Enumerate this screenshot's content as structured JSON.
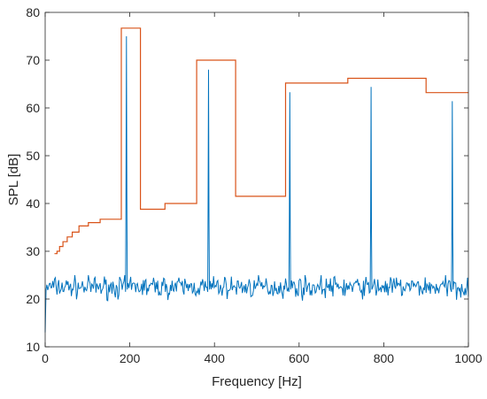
{
  "chart_data": {
    "type": "line",
    "title": "",
    "xlabel": "Frequency [Hz]",
    "ylabel": "SPL [dB]",
    "xlim": [
      0,
      1000
    ],
    "ylim": [
      10,
      80
    ],
    "grid": false,
    "legend": "none",
    "x_ticks": [
      0,
      200,
      400,
      600,
      800,
      1000
    ],
    "x_tick_labels": [
      "0",
      "200",
      "400",
      "600",
      "800",
      "1000"
    ],
    "y_ticks": [
      10,
      20,
      30,
      40,
      50,
      60,
      70,
      80
    ],
    "y_tick_labels": [
      "10",
      "20",
      "30",
      "40",
      "50",
      "60",
      "70",
      "80"
    ],
    "series": [
      {
        "color": "#0072BD",
        "style": "noisy spectrum",
        "baseline_db": 22.5,
        "noise_range_db": [
          18.0,
          25.0
        ],
        "start": [
          [
            0,
            13
          ],
          [
            2,
            22
          ],
          [
            4,
            23
          ]
        ],
        "peaks": [
          {
            "x": 192,
            "y": 75
          },
          {
            "x": 386,
            "y": 68
          },
          {
            "x": 578,
            "y": 63.3
          },
          {
            "x": 770,
            "y": 64.4
          },
          {
            "x": 962,
            "y": 61.4
          }
        ]
      },
      {
        "color": "#D95319",
        "style": "stepped threshold",
        "points": [
          [
            22,
            29.5
          ],
          [
            28,
            29.5
          ],
          [
            28,
            30
          ],
          [
            34,
            30
          ],
          [
            34,
            31
          ],
          [
            42,
            31
          ],
          [
            42,
            32
          ],
          [
            52,
            32
          ],
          [
            52,
            33
          ],
          [
            64,
            33
          ],
          [
            64,
            34
          ],
          [
            80,
            34
          ],
          [
            80,
            35.3
          ],
          [
            102,
            35.3
          ],
          [
            102,
            36
          ],
          [
            130,
            36
          ],
          [
            130,
            36.7
          ],
          [
            180,
            36.7
          ],
          [
            180,
            76.7
          ],
          [
            225,
            76.7
          ],
          [
            225,
            38.8
          ],
          [
            283,
            38.8
          ],
          [
            283,
            40
          ],
          [
            358,
            40
          ],
          [
            358,
            70
          ],
          [
            450,
            70
          ],
          [
            450,
            41.5
          ],
          [
            568,
            41.5
          ],
          [
            568,
            65.2
          ],
          [
            715,
            65.2
          ],
          [
            715,
            66.2
          ],
          [
            900,
            66.2
          ],
          [
            900,
            63.2
          ],
          [
            1000,
            63.2
          ]
        ]
      }
    ]
  }
}
